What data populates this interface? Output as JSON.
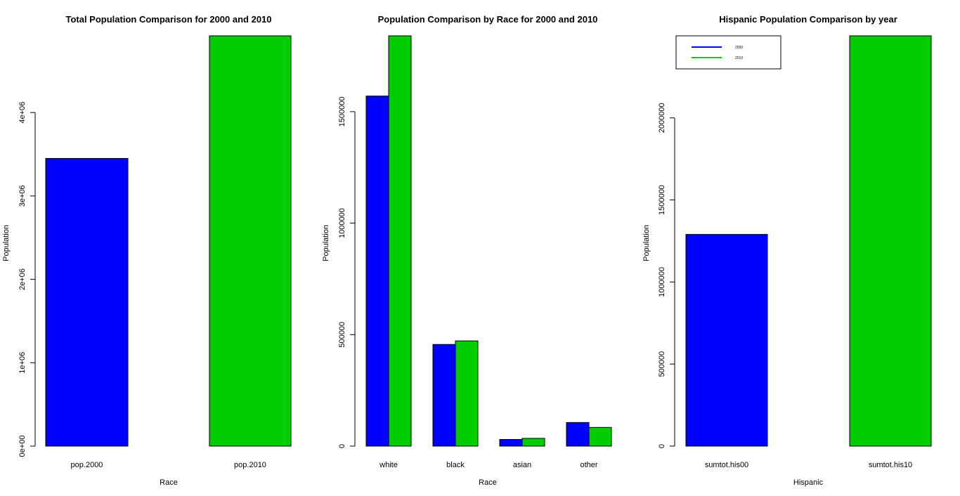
{
  "chart_data": [
    {
      "type": "bar",
      "title": "Total Population Comparison for 2000 and 2010",
      "xlabel": "Race",
      "ylabel": "Population",
      "categories": [
        "pop.2000",
        "pop.2010"
      ],
      "values": [
        3450000,
        4920000
      ],
      "colors": [
        "#0000ff",
        "#00cd00"
      ],
      "yticks": [
        0,
        1000000,
        2000000,
        3000000,
        4000000
      ],
      "ytick_labels": [
        "0e+00",
        "1e+06",
        "2e+06",
        "3e+06",
        "4e+06"
      ],
      "ylim": [
        0,
        4920000
      ],
      "grid": false
    },
    {
      "type": "bar",
      "grouped": true,
      "title": "Population Comparison by Race for 2000 and 2010",
      "xlabel": "Race",
      "ylabel": "Population",
      "categories": [
        "white",
        "black",
        "asian",
        "other"
      ],
      "series": [
        {
          "values": [
            1570000,
            456000,
            30000,
            106000
          ],
          "color": "#0000ff"
        },
        {
          "values": [
            1840000,
            472000,
            35000,
            84000
          ],
          "color": "#00cd00"
        }
      ],
      "yticks": [
        0,
        500000,
        1000000,
        1500000
      ],
      "ytick_labels": [
        "0",
        "500000",
        "1000000",
        "1500000"
      ],
      "ylim": [
        0,
        1840000
      ],
      "grid": false
    },
    {
      "type": "bar",
      "title": "Hispanic Population Comparison by year",
      "xlabel": "Hispanic",
      "ylabel": "Population",
      "categories": [
        "sumtot.his00",
        "sumtot.his10"
      ],
      "values": [
        1290000,
        2500000
      ],
      "colors": [
        "#0000ff",
        "#00cd00"
      ],
      "yticks": [
        0,
        500000,
        1000000,
        1500000,
        2000000
      ],
      "ytick_labels": [
        "0",
        "500000",
        "1000000",
        "1500000",
        "2000000"
      ],
      "ylim": [
        0,
        2500000
      ],
      "legend": {
        "position": "top-left",
        "entries": [
          {
            "label": "2000",
            "color": "#0000ff"
          },
          {
            "label": "2010",
            "color": "#00cd00"
          }
        ]
      },
      "grid": false
    }
  ]
}
